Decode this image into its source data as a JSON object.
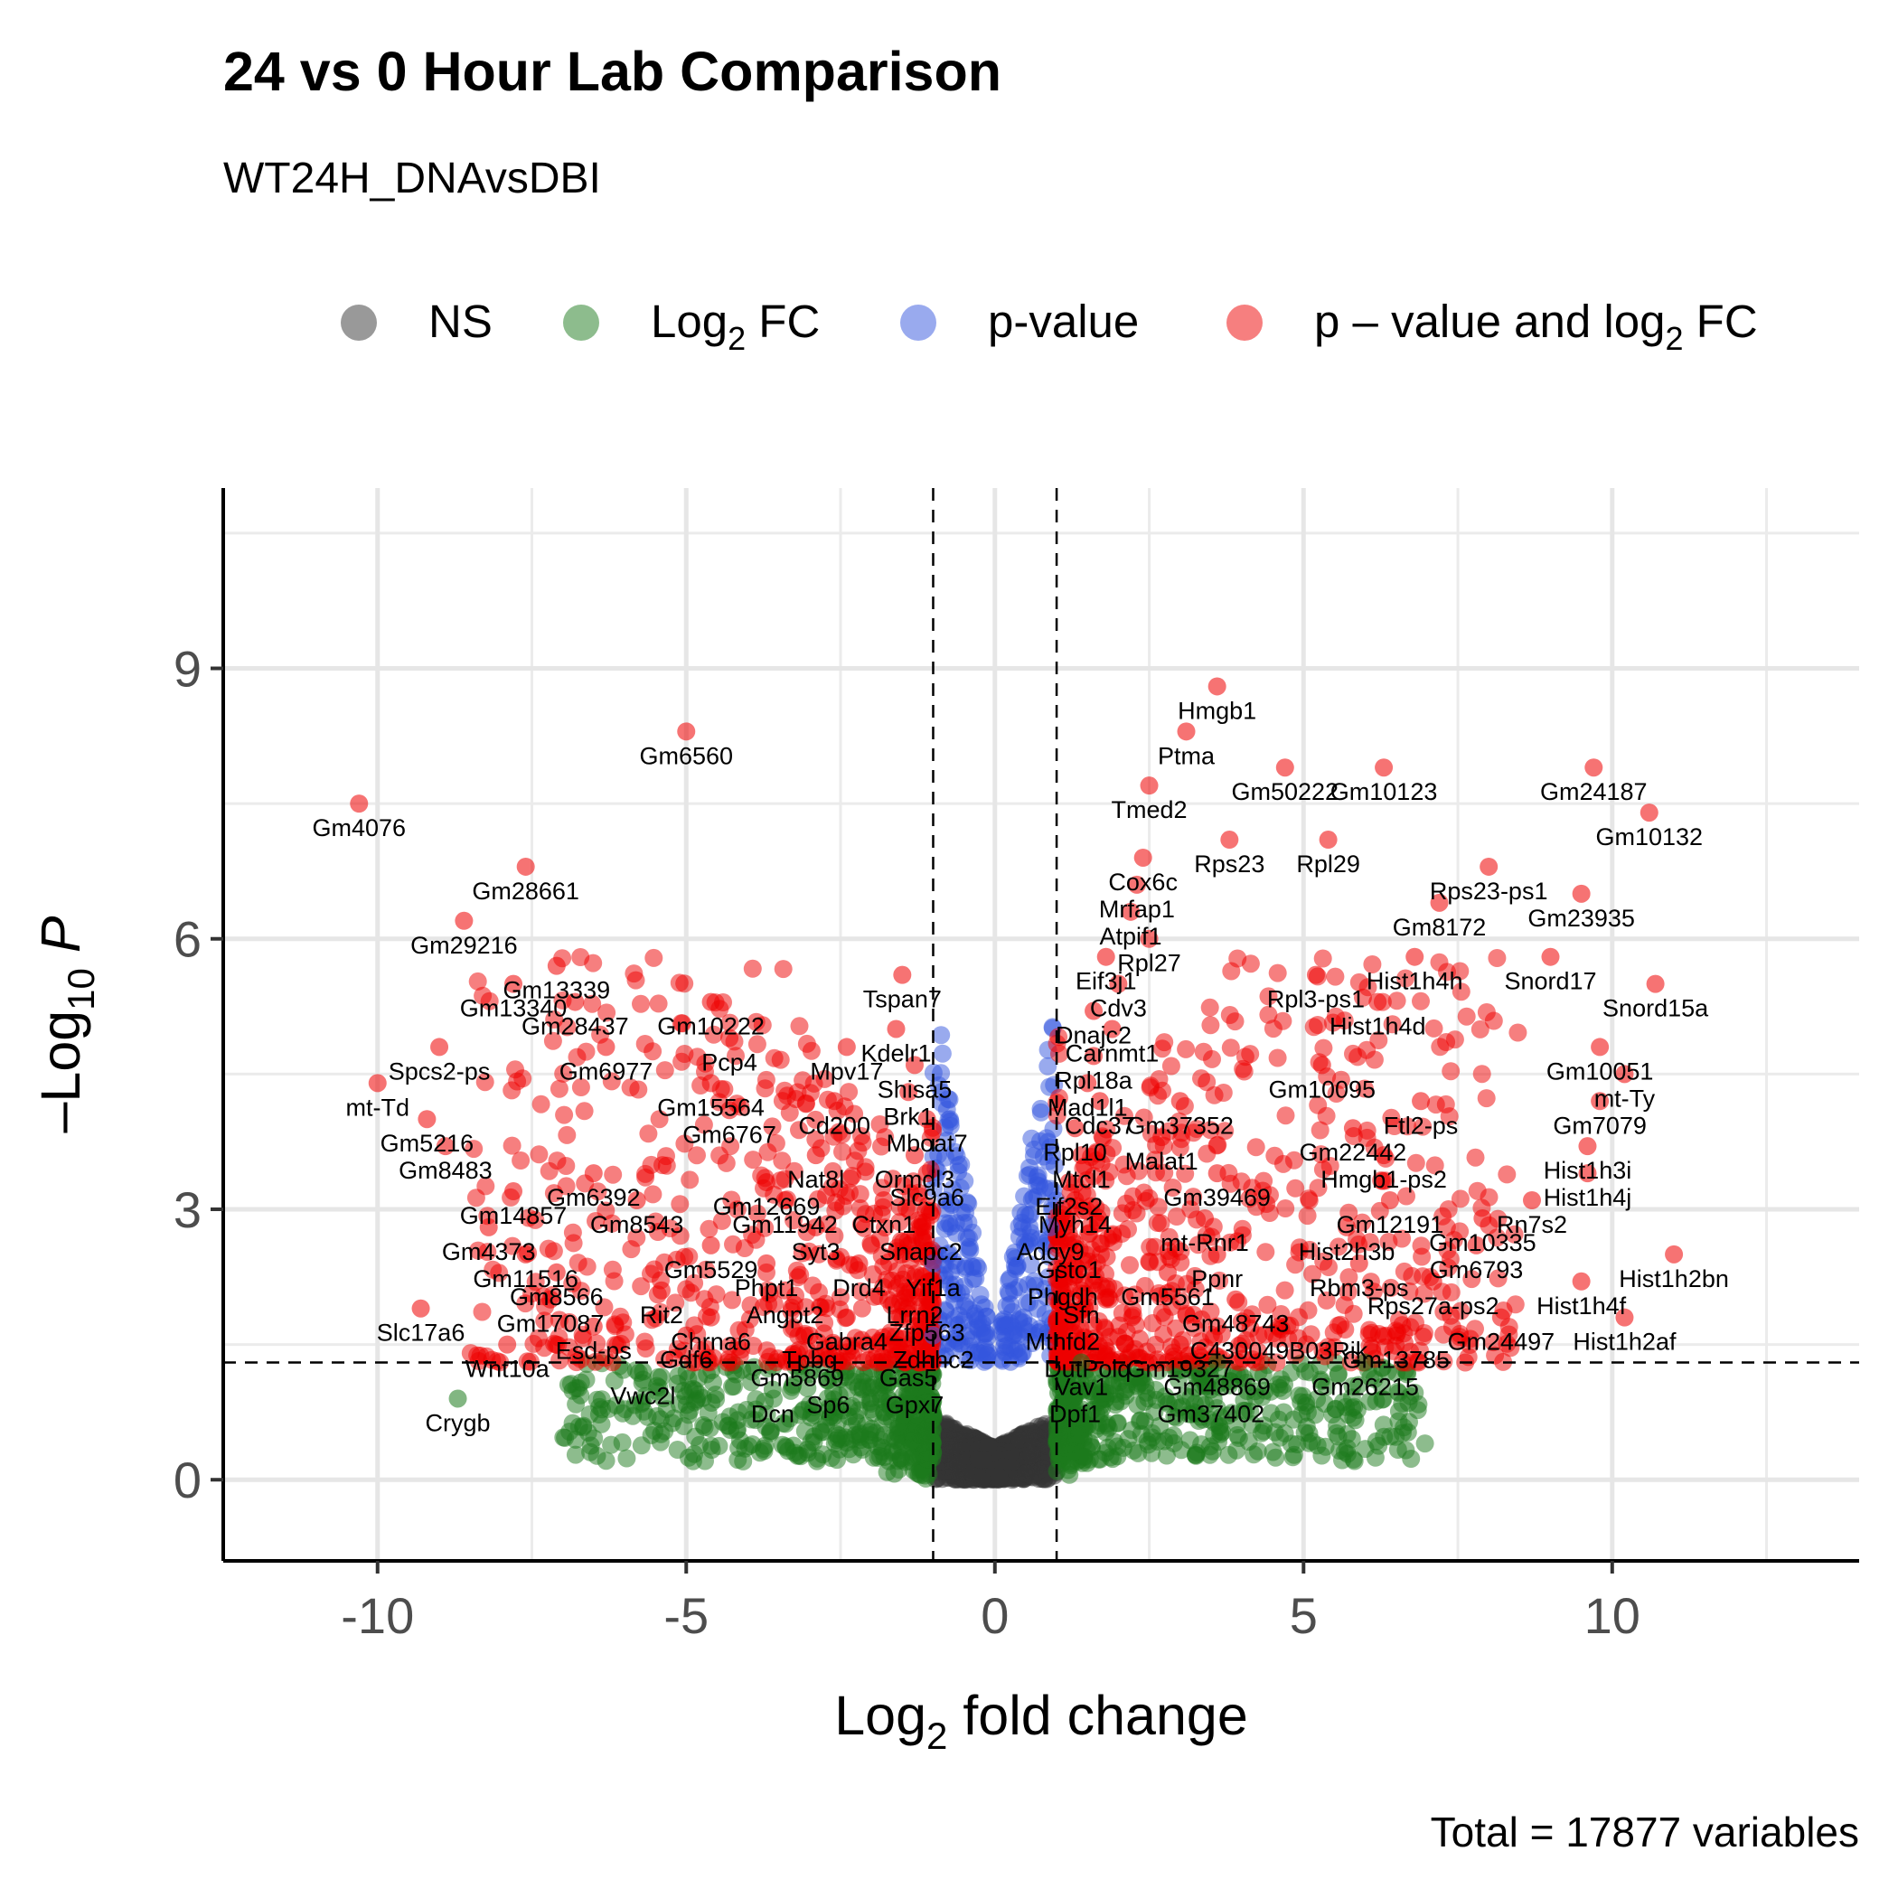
{
  "chart_data": {
    "type": "scatter",
    "title": "24 vs 0 Hour Lab Comparison",
    "subtitle": "WT24H_DNAvsDBI",
    "caption": "Total = 17877 variables",
    "xlabel": {
      "prefix": "Log",
      "sub": "2",
      "suffix": " fold change"
    },
    "ylabel": {
      "prefix": "–Log",
      "sub": "10",
      "italic": "P"
    },
    "xlim": [
      -12.5,
      14
    ],
    "ylim": [
      -0.9,
      11
    ],
    "x_ticks": [
      -10,
      -5,
      0,
      5,
      10
    ],
    "x_tick_labels": [
      "-10",
      "-5",
      "0",
      "5",
      "10"
    ],
    "y_ticks": [
      0,
      3,
      6,
      9
    ],
    "y_tick_labels": [
      "0",
      "3",
      "6",
      "9"
    ],
    "grid": true,
    "fc_cutoff": 1,
    "p_cutoff": 1.3,
    "legend_position": "top",
    "legend": [
      {
        "key": "ns",
        "label": "NS",
        "color": "#333333"
      },
      {
        "key": "fc",
        "label": "Log",
        "sub": "2",
        "suffix": " FC",
        "color": "#1b7a1b"
      },
      {
        "key": "p",
        "label": "p-value",
        "color": "#3355dd"
      },
      {
        "key": "both",
        "label": "p – value and log",
        "sub": "2",
        "suffix": " FC",
        "color": "#ee0000"
      }
    ],
    "labeled_points": [
      {
        "gene": "Hmgb1",
        "x": 3.6,
        "y": 8.8
      },
      {
        "gene": "Ptma",
        "x": 3.1,
        "y": 8.3
      },
      {
        "gene": "Gm6560",
        "x": -5.0,
        "y": 8.3
      },
      {
        "gene": "Gm4076",
        "x": -10.3,
        "y": 7.5
      },
      {
        "gene": "Tmed2",
        "x": 2.5,
        "y": 7.7
      },
      {
        "gene": "Gm50222",
        "x": 4.7,
        "y": 7.9
      },
      {
        "gene": "Gm10123",
        "x": 6.3,
        "y": 7.9
      },
      {
        "gene": "Gm24187",
        "x": 9.7,
        "y": 7.9
      },
      {
        "gene": "Gm10132",
        "x": 10.6,
        "y": 7.4
      },
      {
        "gene": "Rps23",
        "x": 3.8,
        "y": 7.1
      },
      {
        "gene": "Rpl29",
        "x": 5.4,
        "y": 7.1
      },
      {
        "gene": "Cox6c",
        "x": 2.4,
        "y": 6.9
      },
      {
        "gene": "Gm28661",
        "x": -7.6,
        "y": 6.8
      },
      {
        "gene": "Rps23-ps1",
        "x": 8.0,
        "y": 6.8
      },
      {
        "gene": "Mrfap1",
        "x": 2.3,
        "y": 6.6
      },
      {
        "gene": "Gm23935",
        "x": 9.5,
        "y": 6.5
      },
      {
        "gene": "Atpif1",
        "x": 2.2,
        "y": 6.3
      },
      {
        "gene": "Gm8172",
        "x": 7.2,
        "y": 6.4
      },
      {
        "gene": "Gm29216",
        "x": -8.6,
        "y": 6.2
      },
      {
        "gene": "Rpl27",
        "x": 2.5,
        "y": 6.0
      },
      {
        "gene": "Gm13339",
        "x": -7.1,
        "y": 5.7
      },
      {
        "gene": "Hist1h4h",
        "x": 6.8,
        "y": 5.8
      },
      {
        "gene": "Snord17",
        "x": 9.0,
        "y": 5.8
      },
      {
        "gene": "Eif3j1",
        "x": 1.8,
        "y": 5.8
      },
      {
        "gene": "Cdv3",
        "x": 2.0,
        "y": 5.5
      },
      {
        "gene": "Gm13340",
        "x": -7.8,
        "y": 5.5
      },
      {
        "gene": "Tspan7",
        "x": -1.5,
        "y": 5.6
      },
      {
        "gene": "Rpl3-ps1",
        "x": 5.2,
        "y": 5.6
      },
      {
        "gene": "Dnajc2",
        "x": 1.6,
        "y": 5.2
      },
      {
        "gene": "Gm28437",
        "x": -6.8,
        "y": 5.3
      },
      {
        "gene": "Gm10222",
        "x": -4.6,
        "y": 5.3
      },
      {
        "gene": "Snord15a",
        "x": 10.7,
        "y": 5.5
      },
      {
        "gene": "Kdelr1",
        "x": -1.6,
        "y": 5.0
      },
      {
        "gene": "Hist1h4d",
        "x": 6.2,
        "y": 5.3
      },
      {
        "gene": "Carnmt1",
        "x": 1.9,
        "y": 5.0
      },
      {
        "gene": "Mpv17",
        "x": -2.4,
        "y": 4.8
      },
      {
        "gene": "Pcp4",
        "x": -4.3,
        "y": 4.9
      },
      {
        "gene": "Gm6977",
        "x": -6.3,
        "y": 4.8
      },
      {
        "gene": "Spcs2-ps",
        "x": -9.0,
        "y": 4.8
      },
      {
        "gene": "Rpl18a",
        "x": 1.6,
        "y": 4.7
      },
      {
        "gene": "Gm10095",
        "x": 5.3,
        "y": 4.6
      },
      {
        "gene": "Gm10051",
        "x": 9.8,
        "y": 4.8
      },
      {
        "gene": "Shisa5",
        "x": -1.3,
        "y": 4.6
      },
      {
        "gene": "Mad1l1",
        "x": 1.5,
        "y": 4.4
      },
      {
        "gene": "mt-Ty",
        "x": 10.2,
        "y": 4.5
      },
      {
        "gene": "Gm15564",
        "x": -4.6,
        "y": 4.4
      },
      {
        "gene": "mt-Td",
        "x": -10.0,
        "y": 4.4
      },
      {
        "gene": "Brk1",
        "x": -1.4,
        "y": 4.3
      },
      {
        "gene": "Cdc37",
        "x": 1.7,
        "y": 4.2
      },
      {
        "gene": "Gm37352",
        "x": 3.0,
        "y": 4.2
      },
      {
        "gene": "Ftl2-ps",
        "x": 6.9,
        "y": 4.2
      },
      {
        "gene": "Gm7079",
        "x": 9.8,
        "y": 4.2
      },
      {
        "gene": "Cd200",
        "x": -2.6,
        "y": 4.2
      },
      {
        "gene": "Gm6767",
        "x": -4.3,
        "y": 4.1
      },
      {
        "gene": "Mboat7",
        "x": -1.1,
        "y": 4.0
      },
      {
        "gene": "Gm5216",
        "x": -9.2,
        "y": 4.0
      },
      {
        "gene": "Rpl10",
        "x": 1.3,
        "y": 3.9
      },
      {
        "gene": "Malat1",
        "x": 2.7,
        "y": 3.8
      },
      {
        "gene": "Gm22442",
        "x": 5.8,
        "y": 3.9
      },
      {
        "gene": "Hist1h3i",
        "x": 9.6,
        "y": 3.7
      },
      {
        "gene": "Gm8483",
        "x": -8.9,
        "y": 3.7
      },
      {
        "gene": "Ormdl3",
        "x": -1.3,
        "y": 3.6
      },
      {
        "gene": "Nat8l",
        "x": -2.9,
        "y": 3.6
      },
      {
        "gene": "Mtcl1",
        "x": 1.4,
        "y": 3.6
      },
      {
        "gene": "Hmgb1-ps2",
        "x": 6.3,
        "y": 3.6
      },
      {
        "gene": "Slc9a6",
        "x": -1.1,
        "y": 3.4
      },
      {
        "gene": "Gm6392",
        "x": -6.5,
        "y": 3.4
      },
      {
        "gene": "Gm12669",
        "x": -3.7,
        "y": 3.3
      },
      {
        "gene": "Eif2s2",
        "x": 1.2,
        "y": 3.3
      },
      {
        "gene": "Gm39469",
        "x": 3.6,
        "y": 3.4
      },
      {
        "gene": "Hist1h4j",
        "x": 9.6,
        "y": 3.4
      },
      {
        "gene": "Gm14857",
        "x": -7.8,
        "y": 3.2
      },
      {
        "gene": "Ctxn1",
        "x": -1.8,
        "y": 3.1
      },
      {
        "gene": "Gm8543",
        "x": -5.8,
        "y": 3.1
      },
      {
        "gene": "Gm11942",
        "x": -3.4,
        "y": 3.1
      },
      {
        "gene": "Myh14",
        "x": 1.3,
        "y": 3.1
      },
      {
        "gene": "Gm12191",
        "x": 6.4,
        "y": 3.1
      },
      {
        "gene": "Rn7s2",
        "x": 8.7,
        "y": 3.1
      },
      {
        "gene": "mt-Rnr1",
        "x": 3.4,
        "y": 2.9
      },
      {
        "gene": "Snapc2",
        "x": -1.2,
        "y": 2.8
      },
      {
        "gene": "Syt3",
        "x": -2.9,
        "y": 2.8
      },
      {
        "gene": "Adcy9",
        "x": 0.9,
        "y": 2.8
      },
      {
        "gene": "Gm4373",
        "x": -8.2,
        "y": 2.8
      },
      {
        "gene": "Gm10335",
        "x": 7.9,
        "y": 2.9
      },
      {
        "gene": "Hist2h3b",
        "x": 5.7,
        "y": 2.8
      },
      {
        "gene": "Gm6793",
        "x": 7.8,
        "y": 2.6
      },
      {
        "gene": "Gm5529",
        "x": -4.6,
        "y": 2.6
      },
      {
        "gene": "Gsto1",
        "x": 1.2,
        "y": 2.6
      },
      {
        "gene": "Ppnr",
        "x": 3.6,
        "y": 2.5
      },
      {
        "gene": "Gm11516",
        "x": -7.6,
        "y": 2.5
      },
      {
        "gene": "Hist1h2bn",
        "x": 11.0,
        "y": 2.5
      },
      {
        "gene": "Drd4",
        "x": -2.2,
        "y": 2.4
      },
      {
        "gene": "Yif1a",
        "x": -1.0,
        "y": 2.4
      },
      {
        "gene": "Phpt1",
        "x": -3.7,
        "y": 2.4
      },
      {
        "gene": "Phgdh",
        "x": 1.1,
        "y": 2.3
      },
      {
        "gene": "Gm5561",
        "x": 2.8,
        "y": 2.3
      },
      {
        "gene": "Rbm3-ps",
        "x": 5.9,
        "y": 2.4
      },
      {
        "gene": "Gm8566",
        "x": -7.1,
        "y": 2.3
      },
      {
        "gene": "Lrrn2",
        "x": -1.3,
        "y": 2.1
      },
      {
        "gene": "Rit2",
        "x": -5.4,
        "y": 2.1
      },
      {
        "gene": "Angpt2",
        "x": -3.4,
        "y": 2.1
      },
      {
        "gene": "Rps27a-ps2",
        "x": 7.1,
        "y": 2.2
      },
      {
        "gene": "Hist1h4f",
        "x": 9.5,
        "y": 2.2
      },
      {
        "gene": "Sfn",
        "x": 1.4,
        "y": 2.1
      },
      {
        "gene": "Gm48743",
        "x": 3.9,
        "y": 2.0
      },
      {
        "gene": "Gm17087",
        "x": -7.2,
        "y": 2.0
      },
      {
        "gene": "Zfp563",
        "x": -1.1,
        "y": 1.9
      },
      {
        "gene": "Gabra4",
        "x": -2.4,
        "y": 1.8
      },
      {
        "gene": "Chrna6",
        "x": -4.6,
        "y": 1.8
      },
      {
        "gene": "Gm24497",
        "x": 8.2,
        "y": 1.8
      },
      {
        "gene": "Mthfd2",
        "x": 1.1,
        "y": 1.8
      },
      {
        "gene": "Esd-ps",
        "x": -6.5,
        "y": 1.7
      },
      {
        "gene": "C430049B03Rik",
        "x": 4.6,
        "y": 1.7
      },
      {
        "gene": "Hist1h2af",
        "x": 10.2,
        "y": 1.8
      },
      {
        "gene": "Zdhhc2",
        "x": -1.0,
        "y": 1.6
      },
      {
        "gene": "Tpbg",
        "x": -3.0,
        "y": 1.6
      },
      {
        "gene": "Gdf6",
        "x": -5.0,
        "y": 1.6
      },
      {
        "gene": "Slc17a6",
        "x": -9.3,
        "y": 1.9
      },
      {
        "gene": "DutPolq",
        "x": 1.5,
        "y": 1.5
      },
      {
        "gene": "Gm19327",
        "x": 3.0,
        "y": 1.5
      },
      {
        "gene": "Gm13785",
        "x": 6.5,
        "y": 1.6
      },
      {
        "gene": "Wnt10a",
        "x": -7.9,
        "y": 1.5
      },
      {
        "gene": "Gm5869",
        "x": -3.2,
        "y": 1.4
      },
      {
        "gene": "Gas5",
        "x": -1.4,
        "y": 1.4
      },
      {
        "gene": "Vav1",
        "x": 1.4,
        "y": 1.3
      },
      {
        "gene": "Gm48869",
        "x": 3.6,
        "y": 1.3
      },
      {
        "gene": "Gm26215",
        "x": 6.0,
        "y": 1.3
      },
      {
        "gene": "Vwc2l",
        "x": -5.7,
        "y": 1.2
      },
      {
        "gene": "Crygb",
        "x": -8.7,
        "y": 0.9
      },
      {
        "gene": "Sp6",
        "x": -2.7,
        "y": 1.1
      },
      {
        "gene": "Gpx7",
        "x": -1.3,
        "y": 1.1
      },
      {
        "gene": "Dcn",
        "x": -3.6,
        "y": 1.0
      },
      {
        "gene": "Dpf1",
        "x": 1.3,
        "y": 1.0
      },
      {
        "gene": "Gm37402",
        "x": 3.5,
        "y": 1.0
      }
    ]
  }
}
